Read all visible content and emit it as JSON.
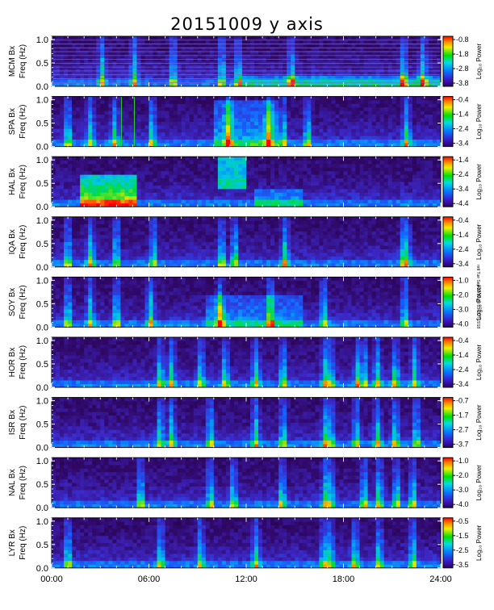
{
  "title": "20151009 y axis",
  "side_note": "rett Tue Sep 12 19:29:03 CDT 2018",
  "colors": {
    "background": "#000000",
    "frame": "#000000",
    "page": "#ffffff"
  },
  "chart_data": {
    "type": "heatmap",
    "title": "20151009 y axis",
    "x_ticks": [
      "00:00",
      "06:00",
      "12:00",
      "18:00",
      "24:00"
    ],
    "x_range_hours": [
      0,
      24
    ],
    "y_ticks": [
      "0.0",
      "0.5",
      "1.0"
    ],
    "y_range_hz": [
      0,
      1.0
    ],
    "colorbar_label": "Log₁₀ Power",
    "colormap": "rainbow (purple → blue → cyan → green → yellow → red)",
    "panels": [
      {
        "station": "MCM",
        "ylabel_top": "MCM Bx",
        "ylabel_bottom": "Freq (Hz)",
        "cb_ticks": [
          "-0.8",
          "-1.8",
          "-2.8",
          "-3.8"
        ],
        "cb_range": [
          -3.8,
          -0.8
        ]
      },
      {
        "station": "SPA",
        "ylabel_top": "SPA Bx",
        "ylabel_bottom": "Freq (Hz)",
        "cb_ticks": [
          "-0.4",
          "-1.4",
          "-2.4",
          "-3.4"
        ],
        "cb_range": [
          -3.4,
          -0.4
        ]
      },
      {
        "station": "HAL",
        "ylabel_top": "HAL Bx",
        "ylabel_bottom": "Freq (Hz)",
        "cb_ticks": [
          "-1.4",
          "-2.4",
          "-3.4",
          "-4.4"
        ],
        "cb_range": [
          -4.4,
          -1.4
        ]
      },
      {
        "station": "IQA",
        "ylabel_top": "IQA Bx",
        "ylabel_bottom": "Freq (Hz)",
        "cb_ticks": [
          "-0.4",
          "-1.4",
          "-2.4",
          "-3.4"
        ],
        "cb_range": [
          -3.4,
          -0.4
        ]
      },
      {
        "station": "SOY",
        "ylabel_top": "SOY Bx",
        "ylabel_bottom": "Freq (Hz)",
        "cb_ticks": [
          "-1.0",
          "-2.0",
          "-3.0",
          "-4.0"
        ],
        "cb_range": [
          -4.0,
          -1.0
        ]
      },
      {
        "station": "HOR",
        "ylabel_top": "HOR Bx",
        "ylabel_bottom": "Freq (Hz)",
        "cb_ticks": [
          "-0.4",
          "-1.4",
          "-2.4",
          "-3.4"
        ],
        "cb_range": [
          -3.4,
          -0.4
        ]
      },
      {
        "station": "ISR",
        "ylabel_top": "ISR Bx",
        "ylabel_bottom": "Freq (Hz)",
        "cb_ticks": [
          "-0.7",
          "-1.7",
          "-2.7",
          "-3.7"
        ],
        "cb_range": [
          -3.7,
          -0.7
        ]
      },
      {
        "station": "NAL",
        "ylabel_top": "NAL Bx",
        "ylabel_bottom": "Freq (Hz)",
        "cb_ticks": [
          "-1.0",
          "-2.0",
          "-3.0",
          "-4.0"
        ],
        "cb_range": [
          -4.0,
          -1.0
        ]
      },
      {
        "station": "LYR",
        "ylabel_top": "LYR Bx",
        "ylabel_bottom": "Freq (Hz)",
        "cb_ticks": [
          "-0.5",
          "-1.5",
          "-2.5",
          "-3.5"
        ],
        "cb_range": [
          -3.5,
          -0.5
        ]
      }
    ]
  }
}
